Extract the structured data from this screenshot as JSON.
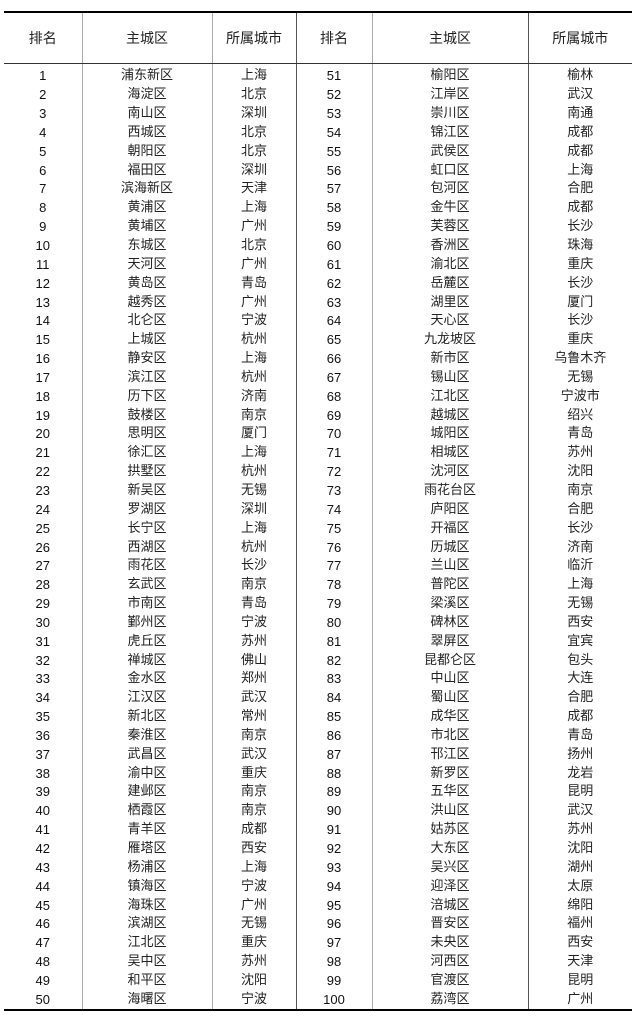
{
  "headers": [
    "排名",
    "主城区",
    "所属城市",
    "排名",
    "主城区",
    "所属城市"
  ],
  "rows": [
    [
      "1",
      "浦东新区",
      "上海"
    ],
    [
      "2",
      "海淀区",
      "北京"
    ],
    [
      "3",
      "南山区",
      "深圳"
    ],
    [
      "4",
      "西城区",
      "北京"
    ],
    [
      "5",
      "朝阳区",
      "北京"
    ],
    [
      "6",
      "福田区",
      "深圳"
    ],
    [
      "7",
      "滨海新区",
      "天津"
    ],
    [
      "8",
      "黄浦区",
      "上海"
    ],
    [
      "9",
      "黄埔区",
      "广州"
    ],
    [
      "10",
      "东城区",
      "北京"
    ],
    [
      "11",
      "天河区",
      "广州"
    ],
    [
      "12",
      "黄岛区",
      "青岛"
    ],
    [
      "13",
      "越秀区",
      "广州"
    ],
    [
      "14",
      "北仑区",
      "宁波"
    ],
    [
      "15",
      "上城区",
      "杭州"
    ],
    [
      "16",
      "静安区",
      "上海"
    ],
    [
      "17",
      "滨江区",
      "杭州"
    ],
    [
      "18",
      "历下区",
      "济南"
    ],
    [
      "19",
      "鼓楼区",
      "南京"
    ],
    [
      "20",
      "思明区",
      "厦门"
    ],
    [
      "21",
      "徐汇区",
      "上海"
    ],
    [
      "22",
      "拱墅区",
      "杭州"
    ],
    [
      "23",
      "新吴区",
      "无锡"
    ],
    [
      "24",
      "罗湖区",
      "深圳"
    ],
    [
      "25",
      "长宁区",
      "上海"
    ],
    [
      "26",
      "西湖区",
      "杭州"
    ],
    [
      "27",
      "雨花区",
      "长沙"
    ],
    [
      "28",
      "玄武区",
      "南京"
    ],
    [
      "29",
      "市南区",
      "青岛"
    ],
    [
      "30",
      "鄞州区",
      "宁波"
    ],
    [
      "31",
      "虎丘区",
      "苏州"
    ],
    [
      "32",
      "禅城区",
      "佛山"
    ],
    [
      "33",
      "金水区",
      "郑州"
    ],
    [
      "34",
      "江汉区",
      "武汉"
    ],
    [
      "35",
      "新北区",
      "常州"
    ],
    [
      "36",
      "秦淮区",
      "南京"
    ],
    [
      "37",
      "武昌区",
      "武汉"
    ],
    [
      "38",
      "渝中区",
      "重庆"
    ],
    [
      "39",
      "建邺区",
      "南京"
    ],
    [
      "40",
      "栖霞区",
      "南京"
    ],
    [
      "41",
      "青羊区",
      "成都"
    ],
    [
      "42",
      "雁塔区",
      "西安"
    ],
    [
      "43",
      "杨浦区",
      "上海"
    ],
    [
      "44",
      "镇海区",
      "宁波"
    ],
    [
      "45",
      "海珠区",
      "广州"
    ],
    [
      "46",
      "滨湖区",
      "无锡"
    ],
    [
      "47",
      "江北区",
      "重庆"
    ],
    [
      "48",
      "吴中区",
      "苏州"
    ],
    [
      "49",
      "和平区",
      "沈阳"
    ],
    [
      "50",
      "海曙区",
      "宁波"
    ]
  ],
  "rows_right": [
    [
      "51",
      "榆阳区",
      "榆林"
    ],
    [
      "52",
      "江岸区",
      "武汉"
    ],
    [
      "53",
      "崇川区",
      "南通"
    ],
    [
      "54",
      "锦江区",
      "成都"
    ],
    [
      "55",
      "武侯区",
      "成都"
    ],
    [
      "56",
      "虹口区",
      "上海"
    ],
    [
      "57",
      "包河区",
      "合肥"
    ],
    [
      "58",
      "金牛区",
      "成都"
    ],
    [
      "59",
      "芙蓉区",
      "长沙"
    ],
    [
      "60",
      "香洲区",
      "珠海"
    ],
    [
      "61",
      "渝北区",
      "重庆"
    ],
    [
      "62",
      "岳麓区",
      "长沙"
    ],
    [
      "63",
      "湖里区",
      "厦门"
    ],
    [
      "64",
      "天心区",
      "长沙"
    ],
    [
      "65",
      "九龙坡区",
      "重庆"
    ],
    [
      "66",
      "新市区",
      "乌鲁木齐"
    ],
    [
      "67",
      "锡山区",
      "无锡"
    ],
    [
      "68",
      "江北区",
      "宁波市"
    ],
    [
      "69",
      "越城区",
      "绍兴"
    ],
    [
      "70",
      "城阳区",
      "青岛"
    ],
    [
      "71",
      "相城区",
      "苏州"
    ],
    [
      "72",
      "沈河区",
      "沈阳"
    ],
    [
      "73",
      "雨花台区",
      "南京"
    ],
    [
      "74",
      "庐阳区",
      "合肥"
    ],
    [
      "75",
      "开福区",
      "长沙"
    ],
    [
      "76",
      "历城区",
      "济南"
    ],
    [
      "77",
      "兰山区",
      "临沂"
    ],
    [
      "78",
      "普陀区",
      "上海"
    ],
    [
      "79",
      "梁溪区",
      "无锡"
    ],
    [
      "80",
      "碑林区",
      "西安"
    ],
    [
      "81",
      "翠屏区",
      "宜宾"
    ],
    [
      "82",
      "昆都仑区",
      "包头"
    ],
    [
      "83",
      "中山区",
      "大连"
    ],
    [
      "84",
      "蜀山区",
      "合肥"
    ],
    [
      "85",
      "成华区",
      "成都"
    ],
    [
      "86",
      "市北区",
      "青岛"
    ],
    [
      "87",
      "邗江区",
      "扬州"
    ],
    [
      "88",
      "新罗区",
      "龙岩"
    ],
    [
      "89",
      "五华区",
      "昆明"
    ],
    [
      "90",
      "洪山区",
      "武汉"
    ],
    [
      "91",
      "姑苏区",
      "苏州"
    ],
    [
      "92",
      "大东区",
      "沈阳"
    ],
    [
      "93",
      "吴兴区",
      "湖州"
    ],
    [
      "94",
      "迎泽区",
      "太原"
    ],
    [
      "95",
      "涪城区",
      "绵阳"
    ],
    [
      "96",
      "晋安区",
      "福州"
    ],
    [
      "97",
      "未央区",
      "西安"
    ],
    [
      "98",
      "河西区",
      "天津"
    ],
    [
      "99",
      "官渡区",
      "昆明"
    ],
    [
      "100",
      "荔湾区",
      "广州"
    ]
  ]
}
